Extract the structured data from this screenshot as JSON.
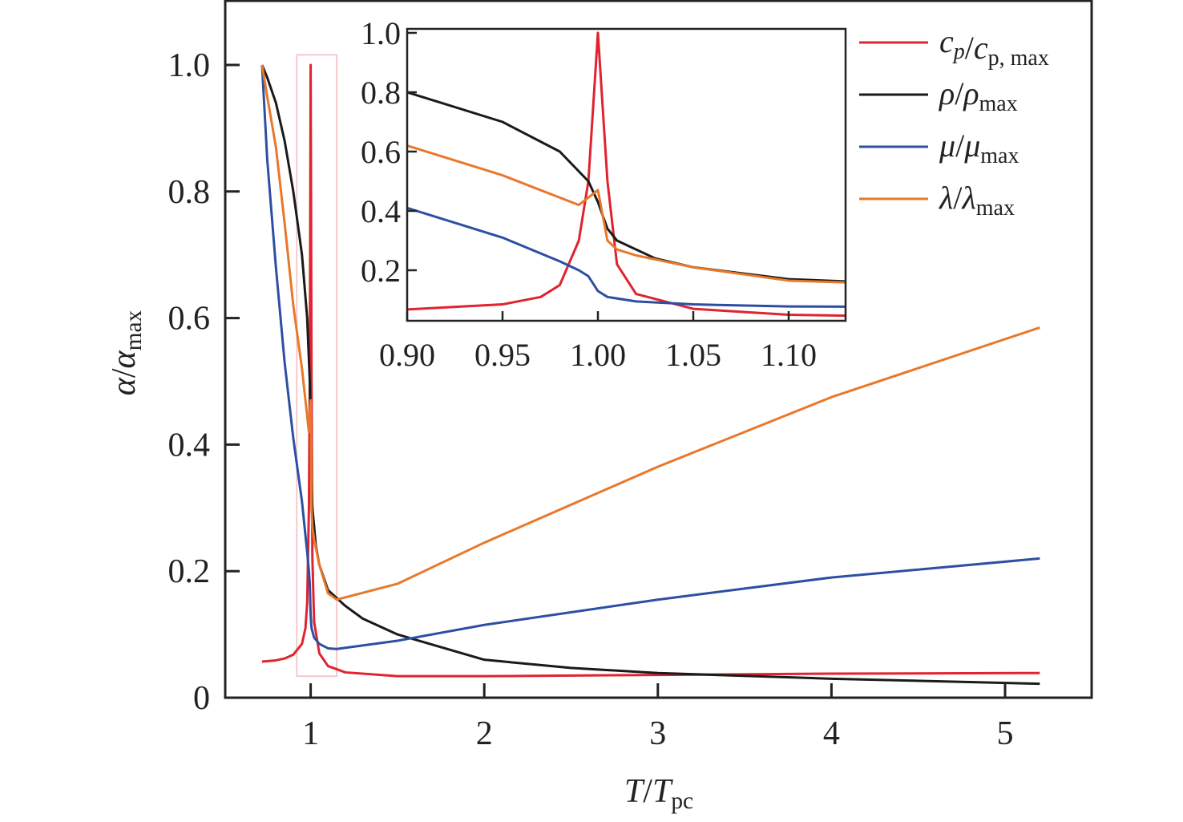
{
  "chart_data": {
    "type": "line",
    "xlabel": {
      "main": "T",
      "slash": "/",
      "den": "T",
      "den_sub": "pc"
    },
    "ylabel": {
      "main": "α",
      "slash": "/",
      "den": "α",
      "den_sub": "max"
    },
    "xlim": [
      0.51,
      5.5
    ],
    "ylim": [
      0,
      1.1
    ],
    "xticks": [
      1,
      2,
      3,
      4,
      5
    ],
    "xtick_labels": [
      "1",
      "2",
      "3",
      "4",
      "5"
    ],
    "yticks": [
      0,
      0.2,
      0.4,
      0.6,
      0.8,
      1.0
    ],
    "ytick_labels": [
      "0",
      "0.2",
      "0.4",
      "0.6",
      "0.8",
      "1.0"
    ],
    "grid": false,
    "legend_position": "top-right",
    "highlight_region": {
      "x": [
        0.92,
        1.15
      ],
      "y": [
        0.034,
        1.016
      ]
    },
    "series": [
      {
        "name": "cp",
        "color": "#e02330",
        "legend": {
          "num": "c",
          "num_sub": "p",
          "slash": "/",
          "den": "c",
          "den_sub": "p, max"
        },
        "x": [
          0.72,
          0.8,
          0.85,
          0.9,
          0.95,
          0.97,
          0.98,
          0.99,
          0.995,
          1.0,
          1.005,
          1.01,
          1.02,
          1.05,
          1.1,
          1.2,
          1.5,
          2,
          3,
          4,
          5.2
        ],
        "y": [
          0.057,
          0.059,
          0.062,
          0.068,
          0.085,
          0.11,
          0.15,
          0.3,
          0.5,
          1.0,
          0.5,
          0.22,
          0.12,
          0.07,
          0.05,
          0.04,
          0.034,
          0.034,
          0.036,
          0.038,
          0.039
        ]
      },
      {
        "name": "rho",
        "color": "#1a1a1a",
        "legend": {
          "num": "ρ",
          "num_sub": "",
          "slash": "/",
          "den": "ρ",
          "den_sub": "max"
        },
        "x": [
          0.72,
          0.75,
          0.8,
          0.85,
          0.9,
          0.95,
          0.98,
          0.995,
          1.0,
          1.005,
          1.01,
          1.03,
          1.05,
          1.1,
          1.2,
          1.3,
          1.5,
          2,
          2.5,
          3,
          4,
          5.2
        ],
        "y": [
          1.0,
          0.98,
          0.94,
          0.88,
          0.8,
          0.7,
          0.6,
          0.5,
          0.43,
          0.34,
          0.3,
          0.24,
          0.21,
          0.17,
          0.145,
          0.125,
          0.1,
          0.06,
          0.047,
          0.039,
          0.03,
          0.022
        ]
      },
      {
        "name": "mu",
        "color": "#2d4fa3",
        "legend": {
          "num": "μ",
          "num_sub": "",
          "slash": "/",
          "den": "μ",
          "den_sub": "max"
        },
        "x": [
          0.72,
          0.75,
          0.8,
          0.85,
          0.9,
          0.95,
          0.98,
          0.99,
          0.995,
          1.0,
          1.005,
          1.02,
          1.05,
          1.1,
          1.15,
          1.5,
          2,
          3,
          4,
          5.2
        ],
        "y": [
          1.0,
          0.85,
          0.68,
          0.53,
          0.41,
          0.31,
          0.23,
          0.2,
          0.18,
          0.13,
          0.11,
          0.095,
          0.085,
          0.078,
          0.077,
          0.09,
          0.115,
          0.155,
          0.19,
          0.22
        ]
      },
      {
        "name": "lambda",
        "color": "#e8782a",
        "legend": {
          "num": "λ",
          "num_sub": "",
          "slash": "/",
          "den": "λ",
          "den_sub": "max"
        },
        "x": [
          0.72,
          0.75,
          0.8,
          0.85,
          0.9,
          0.95,
          0.99,
          1.0,
          1.005,
          1.01,
          1.02,
          1.05,
          1.1,
          1.15,
          1.5,
          2,
          3,
          4,
          5.2
        ],
        "y": [
          1.0,
          0.95,
          0.87,
          0.75,
          0.62,
          0.52,
          0.42,
          0.47,
          0.3,
          0.27,
          0.25,
          0.21,
          0.165,
          0.155,
          0.18,
          0.245,
          0.365,
          0.475,
          0.585
        ]
      }
    ],
    "inset": {
      "xlim": [
        0.9,
        1.13
      ],
      "ylim": [
        0.03,
        1.016
      ],
      "xticks": [
        0.9,
        0.95,
        1.0,
        1.05,
        1.1
      ],
      "xtick_labels": [
        "0.90",
        "0.95",
        "1.00",
        "1.05",
        "1.10"
      ],
      "yticks": [
        0.2,
        0.4,
        0.6,
        0.8,
        1.0
      ],
      "ytick_labels": [
        "0.2",
        "0.4",
        "0.6",
        "0.8",
        "1.0"
      ]
    }
  }
}
